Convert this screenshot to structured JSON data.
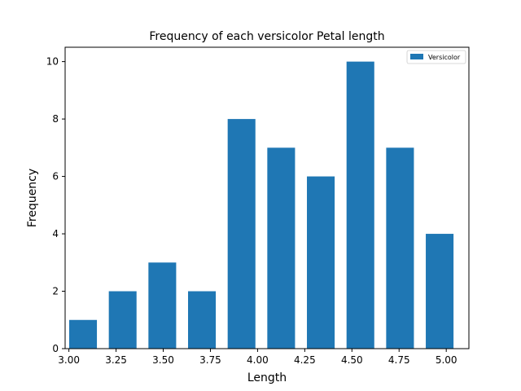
{
  "chart_data": {
    "type": "bar",
    "title": "Frequency of each versicolor Petal length",
    "xlabel": "Length",
    "ylabel": "Frequency",
    "series": [
      {
        "name": "Versicolor",
        "color": "#1f77b4",
        "x": [
          3.075,
          3.285,
          3.495,
          3.705,
          3.915,
          4.125,
          4.335,
          4.545,
          4.755,
          4.965
        ],
        "values": [
          1,
          2,
          3,
          2,
          8,
          7,
          6,
          10,
          7,
          4
        ]
      }
    ],
    "xlim": [
      2.98,
      5.12
    ],
    "ylim": [
      0,
      10.5
    ],
    "xticks": [
      3.0,
      3.25,
      3.5,
      3.75,
      4.0,
      4.25,
      4.5,
      4.75,
      5.0
    ],
    "xtick_labels": [
      "3.00",
      "3.25",
      "3.50",
      "3.75",
      "4.00",
      "4.25",
      "4.50",
      "4.75",
      "5.00"
    ],
    "yticks": [
      0,
      2,
      4,
      6,
      8,
      10
    ],
    "ytick_labels": [
      "0",
      "2",
      "4",
      "6",
      "8",
      "10"
    ],
    "grid": false,
    "legend_position": "top-right"
  }
}
